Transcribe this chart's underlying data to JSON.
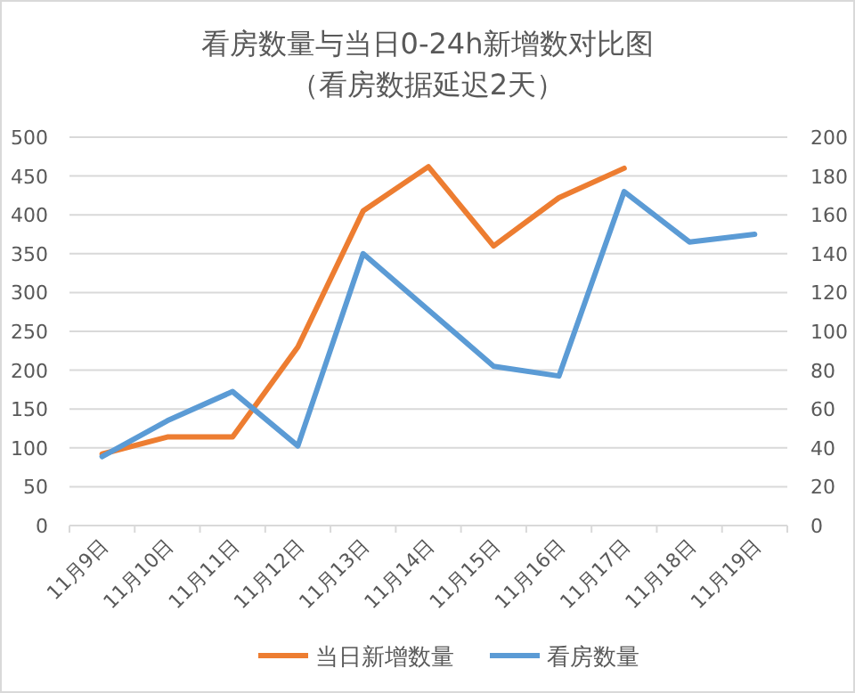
{
  "chart_data": {
    "type": "line",
    "title": "看房数量与当日0-24h新增数对比图",
    "subtitle": "（看房数据延迟2天）",
    "categories": [
      "11月9日",
      "11月10日",
      "11月11日",
      "11月12日",
      "11月13日",
      "11月14日",
      "11月15日",
      "11月16日",
      "11月17日",
      "11月18日",
      "11月19日"
    ],
    "series": [
      {
        "name": "当日新增数量",
        "color": "#ed7d31",
        "values": [
          92,
          114,
          114,
          230,
          405,
          462,
          360,
          422,
          460,
          null,
          null
        ]
      },
      {
        "name": "看房数量",
        "color": "#5b9bd5",
        "axis": "y2",
        "values": [
          35.5,
          54,
          69,
          41,
          140,
          111,
          82,
          77,
          172,
          146,
          150
        ]
      }
    ],
    "ylim": [
      0,
      500
    ],
    "yticks": [
      0,
      50,
      100,
      150,
      200,
      250,
      300,
      350,
      400,
      450,
      500
    ],
    "y2lim": [
      0,
      200
    ],
    "y2ticks": [
      0,
      20,
      40,
      60,
      80,
      100,
      120,
      140,
      160,
      180,
      200
    ],
    "grid": "y",
    "legend": "bottom",
    "marker": "none",
    "line_style": "solid"
  }
}
